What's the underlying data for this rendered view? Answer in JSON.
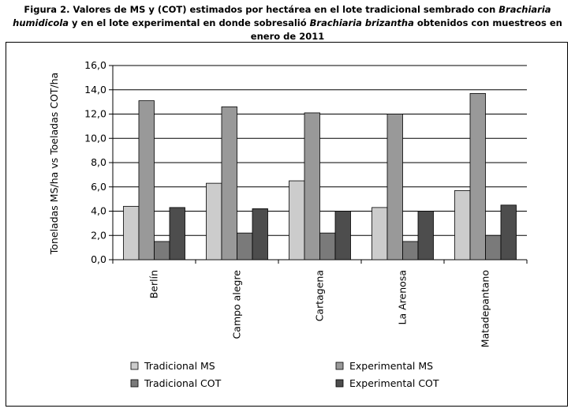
{
  "figure": {
    "label": "Figura 2.",
    "caption_part1": " Valores de MS y (COT) estimados por hectárea en el lote tradicional sembrado con ",
    "caption_ital1": "Brachiaria humidicola",
    "caption_part2": " y en el lote experimental en donde sobresalió ",
    "caption_ital2": "Brachiaria brizantha",
    "caption_part3": " obtenidos con muestreos en enero de 2011"
  },
  "chart_data": {
    "type": "bar",
    "title": "",
    "xlabel": "",
    "ylabel": "Toneladas MS/ha vs Toeladas COT/ha",
    "ylim": [
      0,
      16
    ],
    "ytick_step": 2,
    "ytick_labels": [
      "0,0",
      "2,0",
      "4,0",
      "6,0",
      "8,0",
      "10,0",
      "12,0",
      "14,0",
      "16,0"
    ],
    "categories": [
      "Berlín",
      "Campo alegre",
      "Cartagena",
      "La Arenosa",
      "Matadepantano"
    ],
    "series": [
      {
        "name": "Tradicional MS",
        "color": "#cccccc",
        "values": [
          4.4,
          6.3,
          6.5,
          4.3,
          5.7
        ]
      },
      {
        "name": "Experimental MS",
        "color": "#999999",
        "values": [
          13.1,
          12.6,
          12.1,
          12.0,
          13.7
        ]
      },
      {
        "name": "Tradicional COT",
        "color": "#7a7a7a",
        "values": [
          1.5,
          2.2,
          2.2,
          1.5,
          2.0
        ]
      },
      {
        "name": "Experimental COT",
        "color": "#4d4d4d",
        "values": [
          4.3,
          4.2,
          4.0,
          4.0,
          4.5
        ]
      }
    ],
    "legend_position": "bottom",
    "grid": true
  }
}
